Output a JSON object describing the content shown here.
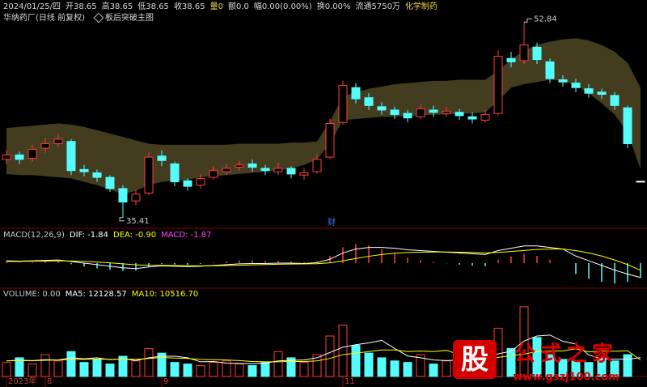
{
  "header": {
    "items": [
      {
        "text": "2024/01/25/四",
        "color": "#d8d8d8"
      },
      {
        "text": "开38.65",
        "color": "#d8d8d8"
      },
      {
        "text": "高38.65",
        "color": "#d8d8d8"
      },
      {
        "text": "低38.65",
        "color": "#d8d8d8"
      },
      {
        "text": "收38.65",
        "color": "#d8d8d8"
      },
      {
        "text": "量0",
        "color": "#e8d84a"
      },
      {
        "text": "额0.0",
        "color": "#d8d8d8"
      },
      {
        "text": "幅0.00(0.00%)",
        "color": "#d8d8d8"
      },
      {
        "text": "换0.00%",
        "color": "#d8d8d8"
      },
      {
        "text": "流通5750万",
        "color": "#d8d8d8"
      },
      {
        "text": "化学制药",
        "color": "#e8d84a"
      }
    ],
    "stock": "华纳药厂(日线 前复权)",
    "indicator": "板后突破主图"
  },
  "event_label": "财",
  "watermark": {
    "badge": "股",
    "name": "公式之家",
    "url": "www.gszj100.com"
  },
  "chart_data": [
    {
      "type": "candlestick",
      "categories": [
        "2023年",
        null,
        null,
        "8",
        null,
        null,
        null,
        null,
        null,
        null,
        null,
        null,
        "9",
        null,
        null,
        null,
        null,
        null,
        null,
        null,
        null,
        null,
        null,
        null,
        null,
        null,
        "11",
        null,
        null,
        null,
        null,
        null,
        null,
        null,
        null,
        null,
        null,
        null,
        null,
        null,
        null,
        null,
        null,
        null,
        null,
        null,
        null,
        null,
        null,
        null
      ],
      "open": [
        40.6,
        41.0,
        40.7,
        41.6,
        42.0,
        42.2,
        39.7,
        39.4,
        39.0,
        38.0,
        36.9,
        37.6,
        40.9,
        40.2,
        38.7,
        38.3,
        39.0,
        39.5,
        39.9,
        40.2,
        39.8,
        39.5,
        39.8,
        39.2,
        39.5,
        40.8,
        43.9,
        47.0,
        46.1,
        45.3,
        45.0,
        44.7,
        44.4,
        45.0,
        44.7,
        44.8,
        44.4,
        44.1,
        44.7,
        49.6,
        49.4,
        50.6,
        49.3,
        47.7,
        47.4,
        46.9,
        46.6,
        46.3,
        45.2,
        38.65
      ],
      "high": [
        41.4,
        41.3,
        41.9,
        42.5,
        42.9,
        42.4,
        40.1,
        39.7,
        39.2,
        38.3,
        37.9,
        41.2,
        41.4,
        40.4,
        38.9,
        39.3,
        40.0,
        40.2,
        40.5,
        40.6,
        40.1,
        40.3,
        40.0,
        39.8,
        41.0,
        44.2,
        47.6,
        47.4,
        46.5,
        45.7,
        45.3,
        45.0,
        45.5,
        45.4,
        45.3,
        45.1,
        44.8,
        45.0,
        50.3,
        50.2,
        52.84,
        51.0,
        49.6,
        48.1,
        47.8,
        47.3,
        46.9,
        46.6,
        45.4,
        38.65
      ],
      "low": [
        40.2,
        40.2,
        40.4,
        41.2,
        41.7,
        39.2,
        39.1,
        38.6,
        37.7,
        35.41,
        36.5,
        37.4,
        40.0,
        38.2,
        37.8,
        38.0,
        38.8,
        39.2,
        39.6,
        39.5,
        39.2,
        39.2,
        38.9,
        38.8,
        39.3,
        40.6,
        43.7,
        45.6,
        45.0,
        44.6,
        44.2,
        43.9,
        44.2,
        44.4,
        44.4,
        44.1,
        43.8,
        43.9,
        44.5,
        48.8,
        49.1,
        49.1,
        47.4,
        47.1,
        46.6,
        46.1,
        46.0,
        45.0,
        41.6,
        38.65
      ],
      "close": [
        41.0,
        40.6,
        41.5,
        42.0,
        42.4,
        39.6,
        39.5,
        39.0,
        38.0,
        36.8,
        37.5,
        40.8,
        40.5,
        38.6,
        38.2,
        38.9,
        39.6,
        39.8,
        40.1,
        39.9,
        39.6,
        39.8,
        39.3,
        39.4,
        40.6,
        43.8,
        47.2,
        46.0,
        45.4,
        45.0,
        44.6,
        44.3,
        45.1,
        44.8,
        44.9,
        44.5,
        44.2,
        44.6,
        49.8,
        49.3,
        50.8,
        49.5,
        47.8,
        47.5,
        47.0,
        46.5,
        46.4,
        45.4,
        42.0,
        38.65
      ],
      "band_upper": [
        43.4,
        43.5,
        43.6,
        43.7,
        43.8,
        43.7,
        43.5,
        43.2,
        42.9,
        42.6,
        42.3,
        42.0,
        41.9,
        41.9,
        41.9,
        41.9,
        41.9,
        41.9,
        42.0,
        42.0,
        42.0,
        42.0,
        42.1,
        42.1,
        42.2,
        44.0,
        46.2,
        46.6,
        46.9,
        47.1,
        47.3,
        47.4,
        47.5,
        47.6,
        47.6,
        47.7,
        47.7,
        47.7,
        48.5,
        49.5,
        50.3,
        50.8,
        51.1,
        51.3,
        51.4,
        51.2,
        50.8,
        50.2,
        49.2,
        47.0
      ],
      "band_lower": [
        39.3,
        39.2,
        39.2,
        39.1,
        39.0,
        38.9,
        38.6,
        38.3,
        37.9,
        37.5,
        37.8,
        38.3,
        38.6,
        38.7,
        38.8,
        39.0,
        39.1,
        39.2,
        39.3,
        39.4,
        39.5,
        39.6,
        39.8,
        40.1,
        40.6,
        42.0,
        44.1,
        44.2,
        44.3,
        44.4,
        44.4,
        44.5,
        44.5,
        44.6,
        44.6,
        44.7,
        44.7,
        44.8,
        45.8,
        47.0,
        47.3,
        47.5,
        47.7,
        47.6,
        47.2,
        46.5,
        45.6,
        44.6,
        43.0,
        39.7
      ],
      "up_color": "#ff3c3c",
      "down_color": "#54fcfc",
      "flat_color": "#ffffff",
      "band_color": "#4a4322",
      "ylim": [
        34.6,
        53.8
      ]
    },
    {
      "type": "macd",
      "legend": [
        {
          "text": "MACD(12,26,9)",
          "color": "#c8c8c8"
        },
        {
          "text": "DIF: -1.84",
          "color": "#ffffff"
        },
        {
          "text": "DEA: -0.90",
          "color": "#ffff00"
        },
        {
          "text": "MACD: -1.87",
          "color": "#ff44ff"
        }
      ],
      "series": [
        {
          "color": "#ffffff",
          "values": [
            0.3,
            0.25,
            0.3,
            0.35,
            0.4,
            0.2,
            0.0,
            -0.2,
            -0.4,
            -0.6,
            -0.7,
            -0.5,
            -0.35,
            -0.4,
            -0.45,
            -0.4,
            -0.3,
            -0.2,
            -0.1,
            -0.05,
            -0.05,
            0.0,
            0.0,
            -0.05,
            0.05,
            0.5,
            1.3,
            1.8,
            2.0,
            2.0,
            1.9,
            1.7,
            1.6,
            1.5,
            1.4,
            1.3,
            1.2,
            1.1,
            1.6,
            1.9,
            2.2,
            2.2,
            2.0,
            1.8,
            0.9,
            0.3,
            -0.3,
            -0.9,
            -1.4,
            -1.84
          ]
        },
        {
          "color": "#ffff00",
          "values": [
            0.2,
            0.22,
            0.24,
            0.26,
            0.29,
            0.27,
            0.22,
            0.14,
            0.03,
            -0.1,
            -0.22,
            -0.28,
            -0.29,
            -0.31,
            -0.34,
            -0.35,
            -0.34,
            -0.31,
            -0.27,
            -0.23,
            -0.19,
            -0.15,
            -0.12,
            -0.11,
            -0.08,
            0.04,
            0.29,
            0.59,
            0.87,
            1.1,
            1.26,
            1.35,
            1.4,
            1.42,
            1.42,
            1.4,
            1.36,
            1.31,
            1.37,
            1.48,
            1.62,
            1.74,
            1.79,
            1.79,
            1.6,
            1.3,
            0.9,
            0.4,
            -0.2,
            -0.9
          ]
        }
      ],
      "bars": {
        "up_color": "#ff3c3c",
        "down_color": "#54fcfc",
        "values": [
          0.2,
          0.06,
          0.12,
          0.18,
          0.22,
          -0.14,
          -0.44,
          -0.68,
          -0.86,
          -1.0,
          -0.96,
          -0.44,
          -0.12,
          -0.18,
          -0.22,
          -0.1,
          0.08,
          0.22,
          0.34,
          0.36,
          0.28,
          0.3,
          0.24,
          0.12,
          0.26,
          0.92,
          2.02,
          2.42,
          2.26,
          1.8,
          1.28,
          0.7,
          0.4,
          0.16,
          -0.04,
          -0.2,
          -0.32,
          -0.42,
          0.46,
          0.84,
          1.16,
          0.92,
          0.42,
          0.02,
          -1.4,
          -2.0,
          -2.4,
          -2.6,
          -2.4,
          -1.87
        ]
      },
      "ylim": [
        -2.8,
        3.0
      ]
    },
    {
      "type": "volume",
      "legend": [
        {
          "text": "VOLUME: 0.00",
          "color": "#c8c8c8"
        },
        {
          "text": "MA5: 12128.57",
          "color": "#ffffff"
        },
        {
          "text": "MA10: 10516.70",
          "color": "#ffff00"
        }
      ],
      "values": [
        9000,
        12000,
        8000,
        14000,
        10000,
        16000,
        9000,
        11000,
        8000,
        13000,
        10000,
        18000,
        15000,
        9000,
        8000,
        7000,
        9000,
        10000,
        8000,
        7000,
        9000,
        16000,
        12000,
        9000,
        14000,
        26000,
        33000,
        20000,
        15000,
        12000,
        10000,
        9000,
        14000,
        8000,
        10000,
        12000,
        9000,
        11000,
        31000,
        18000,
        44800,
        25000,
        14000,
        11000,
        10000,
        9000,
        12000,
        10000,
        14000,
        0
      ],
      "series": [
        {
          "color": "#ffffff",
          "values": [
            10000,
            10500,
            10200,
            10800,
            10600,
            12000,
            11400,
            12000,
            10800,
            11400,
            10200,
            12000,
            13000,
            13000,
            12000,
            9400,
            9600,
            8600,
            8400,
            8200,
            8600,
            10000,
            10400,
            10600,
            12000,
            15400,
            18800,
            20400,
            21600,
            23200,
            18000,
            13200,
            12000,
            10600,
            10200,
            10600,
            10600,
            10000,
            14600,
            16200,
            22800,
            26000,
            26600,
            22600,
            20800,
            13800,
            11200,
            11200,
            11000,
            12128.57
          ]
        },
        {
          "color": "#ffff00",
          "values": [
            10000,
            10200,
            10100,
            10400,
            10500,
            11000,
            11000,
            11200,
            11000,
            11200,
            11000,
            11600,
            12200,
            11800,
            11600,
            11000,
            10800,
            10600,
            10200,
            9600,
            9400,
            9400,
            9700,
            9600,
            10000,
            11600,
            14000,
            15000,
            16000,
            17000,
            17000,
            16000,
            16300,
            16000,
            16800,
            14000,
            12000,
            11100,
            12300,
            13400,
            14400,
            16000,
            16400,
            16400,
            17800,
            15800,
            16400,
            16200,
            16500,
            10516.7
          ]
        }
      ],
      "ylim": [
        0,
        52000
      ]
    }
  ]
}
